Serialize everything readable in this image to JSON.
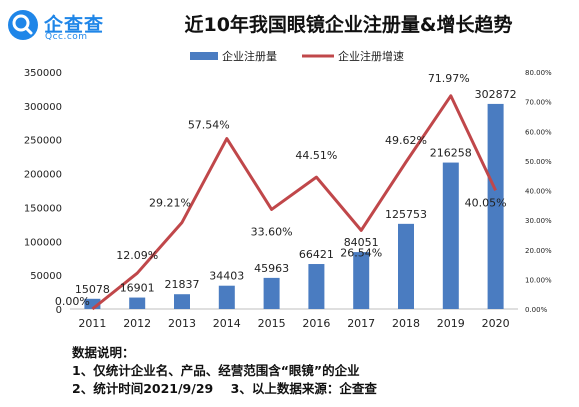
{
  "brand": {
    "name": "企查查",
    "site": "Qcc.com"
  },
  "title": "近10年我国眼镜企业注册量&增长趋势",
  "notes": {
    "heading": "数据说明：",
    "line1": "1、仅统计企业名、产品、经营范围含“眼镜”的企业",
    "line2": "2、统计时间2021/9/29    3、以上数据来源：企查查"
  },
  "colors": {
    "bar": "#4a7cc1",
    "line": "#c0474a",
    "brand": "#1f86e8"
  },
  "chart_data": {
    "type": "bar+line",
    "categories": [
      "2011",
      "2012",
      "2013",
      "2014",
      "2015",
      "2016",
      "2017",
      "2018",
      "2019",
      "2020"
    ],
    "series": [
      {
        "name": "企业注册量",
        "type": "bar",
        "axis": "left",
        "values": [
          15078,
          16901,
          21837,
          34403,
          45963,
          66421,
          84051,
          125753,
          216258,
          302872
        ],
        "labels": [
          "15078",
          "16901",
          "21837",
          "34403",
          "45963",
          "66421",
          "84051",
          "125753",
          "216258",
          "302872"
        ]
      },
      {
        "name": "企业注册增速",
        "type": "line",
        "axis": "right",
        "values": [
          0.0,
          12.09,
          29.21,
          57.54,
          33.6,
          44.51,
          26.54,
          49.62,
          71.97,
          40.05
        ],
        "labels": [
          "0.00%",
          "12.09%",
          "29.21%",
          "57.54%",
          "33.60%",
          "44.51%",
          "26.54%",
          "49.62%",
          "71.97%",
          "40.05%"
        ]
      }
    ],
    "y_left": {
      "range": [
        0,
        350000
      ],
      "ticks": [
        "0",
        "50000",
        "100000",
        "150000",
        "200000",
        "250000",
        "300000",
        "350000"
      ]
    },
    "y_right": {
      "range": [
        0,
        80
      ],
      "ticks": [
        "0.00%",
        "10.00%",
        "20.00%",
        "30.00%",
        "40.00%",
        "50.00%",
        "60.00%",
        "70.00%",
        "80.00%"
      ]
    },
    "legend_position": "top",
    "grid": false
  }
}
